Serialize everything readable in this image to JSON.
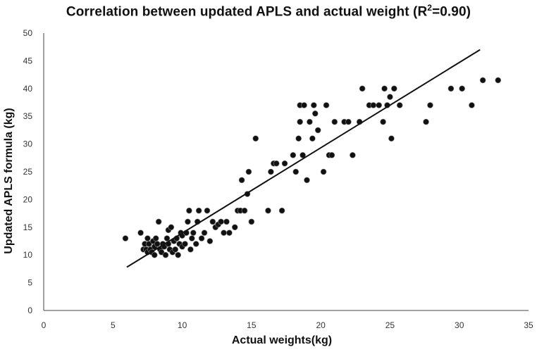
{
  "chart_data": {
    "type": "scatter",
    "title_main": "Correlation between updated APLS and actual weight (R",
    "title_sup": "2",
    "title_end": "=0.90)",
    "xlabel": "Actual weights(kg)",
    "ylabel": "Updated APLS formula (kg)",
    "xlim": [
      0,
      35
    ],
    "ylim": [
      0,
      50
    ],
    "xticks": [
      0,
      5,
      10,
      15,
      20,
      25,
      30,
      35
    ],
    "yticks": [
      0,
      5,
      10,
      15,
      20,
      25,
      30,
      35,
      40,
      45,
      50
    ],
    "grid": false,
    "legend": "none",
    "marker_color": "#111111",
    "trendline": {
      "x": [
        6,
        31.5
      ],
      "y": [
        7.8,
        47
      ]
    },
    "points": [
      [
        5.9,
        13
      ],
      [
        7,
        14
      ],
      [
        7.2,
        11
      ],
      [
        7.3,
        12
      ],
      [
        7.4,
        11
      ],
      [
        7.5,
        10.5
      ],
      [
        7.5,
        13
      ],
      [
        7.6,
        12
      ],
      [
        7.7,
        11
      ],
      [
        7.8,
        10.5
      ],
      [
        7.9,
        12.5
      ],
      [
        8,
        11.5
      ],
      [
        8,
        10
      ],
      [
        8.1,
        13
      ],
      [
        8.2,
        12
      ],
      [
        8.3,
        16
      ],
      [
        8.4,
        11
      ],
      [
        8.5,
        10.5
      ],
      [
        8.6,
        12
      ],
      [
        8.7,
        11.5
      ],
      [
        8.8,
        10
      ],
      [
        8.9,
        13
      ],
      [
        9,
        12
      ],
      [
        9,
        14.5
      ],
      [
        9.1,
        11
      ],
      [
        9.2,
        15
      ],
      [
        9.3,
        10.5
      ],
      [
        9.4,
        12.5
      ],
      [
        9.5,
        11
      ],
      [
        9.6,
        13
      ],
      [
        9.7,
        10
      ],
      [
        9.8,
        12
      ],
      [
        9.9,
        14
      ],
      [
        10,
        11.5
      ],
      [
        10,
        13.5
      ],
      [
        10.2,
        12
      ],
      [
        10.3,
        14
      ],
      [
        10.4,
        16
      ],
      [
        10.5,
        18
      ],
      [
        10.6,
        11
      ],
      [
        10.7,
        13
      ],
      [
        10.8,
        14
      ],
      [
        11,
        12
      ],
      [
        11.1,
        16
      ],
      [
        11.2,
        18
      ],
      [
        11.4,
        13
      ],
      [
        11.6,
        14
      ],
      [
        11.8,
        18
      ],
      [
        12,
        12.5
      ],
      [
        12.2,
        16
      ],
      [
        12.4,
        15
      ],
      [
        12.6,
        15.5
      ],
      [
        12.8,
        16
      ],
      [
        13,
        14
      ],
      [
        13.2,
        16
      ],
      [
        13.4,
        14
      ],
      [
        13.8,
        15
      ],
      [
        14,
        18
      ],
      [
        14.2,
        18
      ],
      [
        14.3,
        23.5
      ],
      [
        14.5,
        18
      ],
      [
        14.7,
        21
      ],
      [
        14.8,
        25
      ],
      [
        15,
        16
      ],
      [
        15.3,
        31
      ],
      [
        16.2,
        18
      ],
      [
        16.4,
        25
      ],
      [
        16.6,
        26.5
      ],
      [
        16.8,
        26.5
      ],
      [
        17.2,
        18
      ],
      [
        17.4,
        26.5
      ],
      [
        18,
        28
      ],
      [
        18.2,
        25
      ],
      [
        18.4,
        31
      ],
      [
        18.5,
        34
      ],
      [
        18.5,
        37
      ],
      [
        18.7,
        28
      ],
      [
        18.8,
        37
      ],
      [
        19,
        23.5
      ],
      [
        19.2,
        34
      ],
      [
        19.4,
        31
      ],
      [
        19.5,
        37
      ],
      [
        19.6,
        35.5
      ],
      [
        19.8,
        32.5
      ],
      [
        20.2,
        25
      ],
      [
        20.4,
        37
      ],
      [
        20.6,
        28
      ],
      [
        20.8,
        28
      ],
      [
        21,
        34
      ],
      [
        21.7,
        34
      ],
      [
        22,
        34
      ],
      [
        22.3,
        28
      ],
      [
        22.8,
        34
      ],
      [
        23,
        40
      ],
      [
        23.5,
        37
      ],
      [
        23.8,
        37
      ],
      [
        24.2,
        37
      ],
      [
        24.5,
        34
      ],
      [
        24.6,
        40
      ],
      [
        24.8,
        37
      ],
      [
        25,
        38.5
      ],
      [
        25.1,
        31
      ],
      [
        25.3,
        40
      ],
      [
        25.7,
        37
      ],
      [
        27.6,
        34
      ],
      [
        27.9,
        37
      ],
      [
        29.4,
        40
      ],
      [
        30.2,
        40
      ],
      [
        30.9,
        37
      ],
      [
        31.7,
        41.5
      ],
      [
        32.8,
        41.5
      ]
    ]
  }
}
